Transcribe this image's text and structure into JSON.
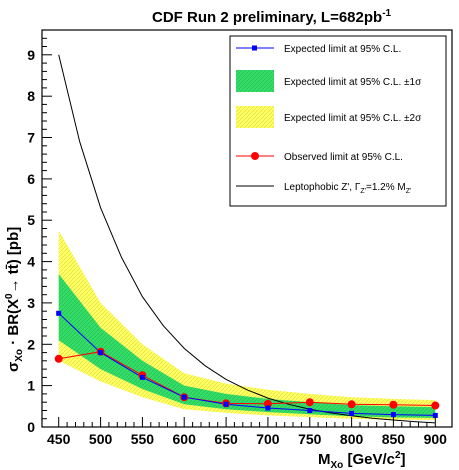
{
  "chart_data": {
    "type": "line",
    "title": "CDF Run 2 preliminary, L=682pb",
    "title_sup": "-1",
    "xlabel": {
      "main": "M",
      "sub": "Xo",
      "rest": " [GeV/c",
      "sup": "2",
      "end": "]"
    },
    "ylabel": {
      "sigma": "σ",
      "sub": "Xo",
      "rest1": " · BR(X",
      "sup": "0",
      "rest2": "→ tt̄) [pb]"
    },
    "xlim": [
      430,
      920
    ],
    "ylim": [
      0,
      9.6
    ],
    "xticks": [
      450,
      500,
      550,
      600,
      650,
      700,
      750,
      800,
      850,
      900
    ],
    "yticks": [
      0,
      1,
      2,
      3,
      4,
      5,
      6,
      7,
      8,
      9
    ],
    "grid": false,
    "legend_position": "top-right",
    "x": [
      450,
      500,
      550,
      600,
      650,
      700,
      750,
      800,
      850,
      900
    ],
    "expected": [
      2.75,
      1.8,
      1.2,
      0.72,
      0.55,
      0.46,
      0.4,
      0.33,
      0.3,
      0.28
    ],
    "band1_upper": [
      3.7,
      2.4,
      1.6,
      1.0,
      0.8,
      0.68,
      0.6,
      0.53,
      0.5,
      0.48
    ],
    "band1_lower": [
      2.1,
      1.4,
      0.92,
      0.55,
      0.43,
      0.36,
      0.31,
      0.26,
      0.23,
      0.22
    ],
    "band2_upper": [
      4.75,
      3.0,
      2.0,
      1.3,
      1.05,
      0.9,
      0.8,
      0.72,
      0.68,
      0.65
    ],
    "band2_lower": [
      1.6,
      1.1,
      0.72,
      0.43,
      0.34,
      0.28,
      0.24,
      0.2,
      0.18,
      0.17
    ],
    "observed": [
      1.65,
      1.82,
      1.25,
      0.72,
      0.57,
      0.56,
      0.6,
      0.55,
      0.54,
      0.52
    ],
    "zprime": {
      "x": [
        450,
        475,
        500,
        525,
        550,
        575,
        600,
        625,
        650,
        675,
        700,
        725,
        750,
        775,
        800,
        825,
        850,
        875,
        900
      ],
      "y": [
        9.0,
        6.9,
        5.3,
        4.1,
        3.15,
        2.45,
        1.9,
        1.48,
        1.15,
        0.9,
        0.7,
        0.55,
        0.43,
        0.34,
        0.27,
        0.21,
        0.17,
        0.13,
        0.1
      ]
    },
    "series": [
      {
        "key": "expected",
        "name": "Expected limit at 95% C.L.",
        "color": "#0000ff",
        "marker": "square"
      },
      {
        "key": "band1",
        "name": "Expected limit at 95% C.L. ±1σ",
        "color": "#33dd66"
      },
      {
        "key": "band2",
        "name": "Expected limit at 95% C.L. ±2σ",
        "color": "#ffff66"
      },
      {
        "key": "observed",
        "name": "Observed limit at 95% C.L.",
        "color": "#ff0000",
        "marker": "circle"
      },
      {
        "key": "zprime",
        "name_main": "Leptophobic Z', Γ",
        "name_sub1": "Z'",
        "name_mid": "=1.2% M",
        "name_sub2": "Z'",
        "color": "#000000"
      }
    ]
  }
}
